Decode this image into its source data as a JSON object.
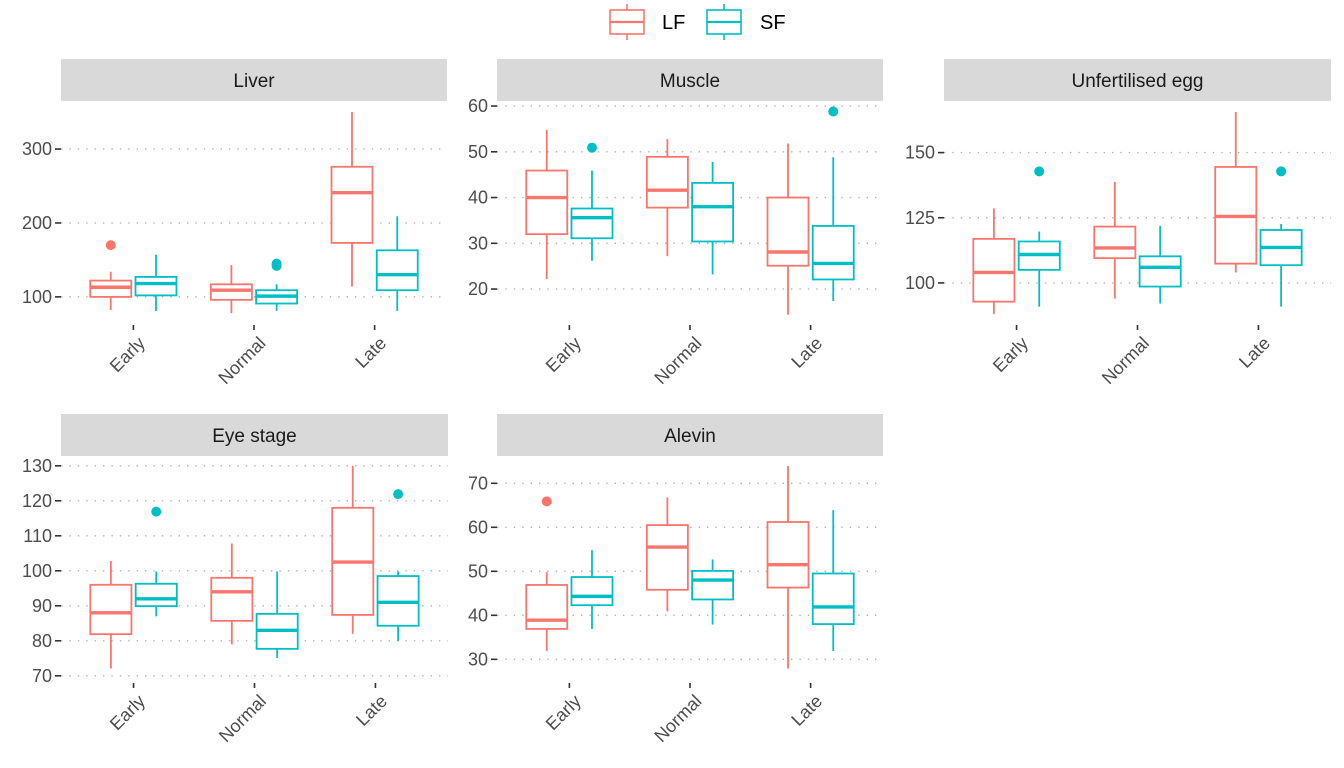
{
  "chart_data": {
    "type": "boxplot",
    "title": "",
    "xlabel": "",
    "ylabel": "",
    "categories": [
      "Early",
      "Normal",
      "Late"
    ],
    "legend": {
      "position": "top",
      "entries": [
        {
          "name": "LF",
          "color": "#F8766D"
        },
        {
          "name": "SF",
          "color": "#00BFC4"
        }
      ]
    },
    "grid": "horizontal-dotted",
    "panels": [
      {
        "title": "Liver",
        "ylim": [
          66,
          365
        ],
        "yticks": [
          100,
          200,
          300
        ],
        "series": [
          {
            "name": "LF",
            "boxes": [
              {
                "category": "Early",
                "whisker_low": 82,
                "q1": 100,
                "median": 113,
                "q3": 122,
                "whisker_high": 134,
                "outliers": [
                  170
                ]
              },
              {
                "category": "Normal",
                "whisker_low": 78,
                "q1": 96,
                "median": 109,
                "q3": 117,
                "whisker_high": 143,
                "outliers": []
              },
              {
                "category": "Late",
                "whisker_low": 114,
                "q1": 173,
                "median": 241,
                "q3": 276,
                "whisker_high": 350,
                "outliers": []
              }
            ]
          },
          {
            "name": "SF",
            "boxes": [
              {
                "category": "Early",
                "whisker_low": 81,
                "q1": 102,
                "median": 118,
                "q3": 127,
                "whisker_high": 157,
                "outliers": []
              },
              {
                "category": "Normal",
                "whisker_low": 81,
                "q1": 91,
                "median": 101,
                "q3": 109,
                "whisker_high": 117,
                "outliers": [
                  142,
                  145
                ]
              },
              {
                "category": "Late",
                "whisker_low": 81,
                "q1": 109,
                "median": 130,
                "q3": 163,
                "whisker_high": 209,
                "outliers": []
              }
            ]
          }
        ]
      },
      {
        "title": "Muscle",
        "ylim": [
          12.8,
          61.1
        ],
        "yticks": [
          20,
          30,
          40,
          50,
          60
        ],
        "series": [
          {
            "name": "LF",
            "boxes": [
              {
                "category": "Early",
                "whisker_low": 22.2,
                "q1": 32,
                "median": 40,
                "q3": 45.9,
                "whisker_high": 54.8,
                "outliers": []
              },
              {
                "category": "Normal",
                "whisker_low": 27.2,
                "q1": 37.8,
                "median": 41.6,
                "q3": 48.9,
                "whisker_high": 52.8,
                "outliers": []
              },
              {
                "category": "Late",
                "whisker_low": 14.4,
                "q1": 25.1,
                "median": 28.1,
                "q3": 40,
                "whisker_high": 51.8,
                "outliers": []
              }
            ]
          },
          {
            "name": "SF",
            "boxes": [
              {
                "category": "Early",
                "whisker_low": 26.2,
                "q1": 31.1,
                "median": 35.6,
                "q3": 37.6,
                "whisker_high": 45.9,
                "outliers": [
                  50.9
                ]
              },
              {
                "category": "Normal",
                "whisker_low": 23.2,
                "q1": 30.4,
                "median": 38,
                "q3": 43.2,
                "whisker_high": 47.8,
                "outliers": []
              },
              {
                "category": "Late",
                "whisker_low": 17.4,
                "q1": 22.1,
                "median": 25.6,
                "q3": 33.8,
                "whisker_high": 48.8,
                "outliers": [
                  58.8
                ]
              }
            ]
          }
        ]
      },
      {
        "title": "Unfertilised egg",
        "ylim": [
          85,
          169.8
        ],
        "yticks": [
          100,
          125,
          150
        ],
        "series": [
          {
            "name": "LF",
            "boxes": [
              {
                "category": "Early",
                "whisker_low": 88.1,
                "q1": 92.8,
                "median": 104,
                "q3": 116.9,
                "whisker_high": 128.6,
                "outliers": []
              },
              {
                "category": "Normal",
                "whisker_low": 94,
                "q1": 109.5,
                "median": 113.4,
                "q3": 121.6,
                "whisker_high": 138.7,
                "outliers": []
              },
              {
                "category": "Late",
                "whisker_low": 104,
                "q1": 107.4,
                "median": 125.5,
                "q3": 144.5,
                "whisker_high": 165.6,
                "outliers": []
              }
            ]
          },
          {
            "name": "SF",
            "boxes": [
              {
                "category": "Early",
                "whisker_low": 90.9,
                "q1": 105,
                "median": 110.9,
                "q3": 115.9,
                "whisker_high": 119.7,
                "outliers": [
                  142.8
                ]
              },
              {
                "category": "Normal",
                "whisker_low": 92.1,
                "q1": 98.6,
                "median": 106,
                "q3": 110.2,
                "whisker_high": 121.9,
                "outliers": []
              },
              {
                "category": "Late",
                "whisker_low": 90.9,
                "q1": 106.8,
                "median": 113.6,
                "q3": 120.3,
                "whisker_high": 122.6,
                "outliers": [
                  142.8
                ]
              }
            ]
          }
        ]
      },
      {
        "title": "Eye stage",
        "ylim": [
          68.8,
          132.8
        ],
        "yticks": [
          70,
          80,
          90,
          100,
          110,
          120,
          130
        ],
        "series": [
          {
            "name": "LF",
            "boxes": [
              {
                "category": "Early",
                "whisker_low": 72.1,
                "q1": 81.9,
                "median": 88,
                "q3": 96,
                "whisker_high": 102.8,
                "outliers": []
              },
              {
                "category": "Normal",
                "whisker_low": 79,
                "q1": 85.7,
                "median": 94,
                "q3": 98,
                "whisker_high": 107.8,
                "outliers": []
              },
              {
                "category": "Late",
                "whisker_low": 82,
                "q1": 87.4,
                "median": 102.5,
                "q3": 118,
                "whisker_high": 130,
                "outliers": []
              }
            ]
          },
          {
            "name": "SF",
            "boxes": [
              {
                "category": "Early",
                "whisker_low": 87,
                "q1": 89.9,
                "median": 92,
                "q3": 96.3,
                "whisker_high": 99.8,
                "outliers": [
                  116.9
                ]
              },
              {
                "category": "Normal",
                "whisker_low": 75.1,
                "q1": 77.7,
                "median": 83,
                "q3": 87.7,
                "whisker_high": 99.8,
                "outliers": []
              },
              {
                "category": "Late",
                "whisker_low": 80,
                "q1": 84.3,
                "median": 91,
                "q3": 98.5,
                "whisker_high": 99.8,
                "outliers": [
                  121.9
                ]
              }
            ]
          }
        ]
      },
      {
        "title": "Alevin",
        "ylim": [
          25.3,
          76.2
        ],
        "yticks": [
          30,
          40,
          50,
          60,
          70
        ],
        "series": [
          {
            "name": "LF",
            "boxes": [
              {
                "category": "Early",
                "whisker_low": 31.9,
                "q1": 36.9,
                "median": 38.9,
                "q3": 46.9,
                "whisker_high": 49.8,
                "outliers": [
                  65.9
                ]
              },
              {
                "category": "Normal",
                "whisker_low": 40.9,
                "q1": 45.8,
                "median": 55.5,
                "q3": 60.5,
                "whisker_high": 66.8,
                "outliers": []
              },
              {
                "category": "Late",
                "whisker_low": 27.9,
                "q1": 46.3,
                "median": 51.5,
                "q3": 61.2,
                "whisker_high": 73.9,
                "outliers": []
              }
            ]
          },
          {
            "name": "SF",
            "boxes": [
              {
                "category": "Early",
                "whisker_low": 36.9,
                "q1": 42.3,
                "median": 44.3,
                "q3": 48.7,
                "whisker_high": 54.8,
                "outliers": []
              },
              {
                "category": "Normal",
                "whisker_low": 37.9,
                "q1": 43.6,
                "median": 48,
                "q3": 50.1,
                "whisker_high": 52.7,
                "outliers": []
              },
              {
                "category": "Late",
                "whisker_low": 31.9,
                "q1": 38,
                "median": 41.9,
                "q3": 49.5,
                "whisker_high": 63.9,
                "outliers": []
              }
            ]
          }
        ]
      }
    ]
  }
}
